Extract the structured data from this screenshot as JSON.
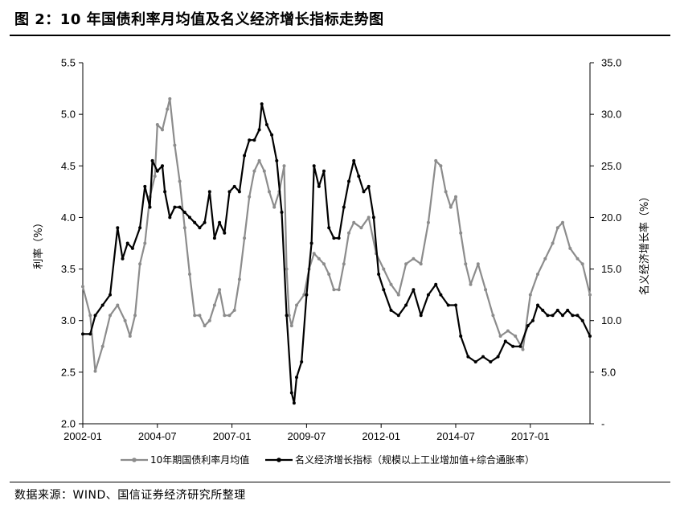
{
  "figure": {
    "title": "图 2：10 年国债利率月均值及名义经济增长指标走势图",
    "source": "数据来源：WIND、国信证券经济研究所整理"
  },
  "colors": {
    "series1": "#8c8c8c",
    "series2": "#000000",
    "axis": "#000000"
  },
  "chart_data": {
    "type": "line",
    "title": "图 2：10 年国债利率月均值及名义经济增长指标走势图",
    "xlabel": "",
    "ylabel": "利率（%）",
    "y2label": "名义经济增长率（%）",
    "x_ticks": [
      "2002-01",
      "2004-07",
      "2007-01",
      "2009-07",
      "2012-01",
      "2014-07",
      "2017-01"
    ],
    "xlim": [
      "2002-01",
      "2019-01"
    ],
    "ylim": [
      2.0,
      5.5
    ],
    "y_ticks": [
      "2.0",
      "2.5",
      "3.0",
      "3.5",
      "4.0",
      "4.5",
      "5.0",
      "5.5"
    ],
    "y2lim": [
      0,
      35
    ],
    "y2_ticks": [
      "-",
      "5.0",
      "10.0",
      "15.0",
      "20.0",
      "25.0",
      "30.0",
      "35.0"
    ],
    "legend_position": "bottom",
    "grid": false,
    "series": [
      {
        "name": "10年期国债利率月均值",
        "axis": "left",
        "color": "#8c8c8c",
        "marker": "circle",
        "points": [
          [
            "2002-01",
            3.33
          ],
          [
            "2002-04",
            3.05
          ],
          [
            "2002-06",
            2.51
          ],
          [
            "2002-09",
            2.75
          ],
          [
            "2002-12",
            3.05
          ],
          [
            "2003-03",
            3.15
          ],
          [
            "2003-06",
            3.0
          ],
          [
            "2003-08",
            2.85
          ],
          [
            "2003-10",
            3.05
          ],
          [
            "2003-12",
            3.55
          ],
          [
            "2004-02",
            3.75
          ],
          [
            "2004-04",
            4.2
          ],
          [
            "2004-06",
            4.4
          ],
          [
            "2004-07",
            4.9
          ],
          [
            "2004-09",
            4.85
          ],
          [
            "2004-11",
            5.05
          ],
          [
            "2004-12",
            5.15
          ],
          [
            "2005-02",
            4.7
          ],
          [
            "2005-04",
            4.35
          ],
          [
            "2005-06",
            3.9
          ],
          [
            "2005-08",
            3.45
          ],
          [
            "2005-10",
            3.05
          ],
          [
            "2005-12",
            3.05
          ],
          [
            "2006-02",
            2.95
          ],
          [
            "2006-04",
            3.0
          ],
          [
            "2006-06",
            3.15
          ],
          [
            "2006-08",
            3.3
          ],
          [
            "2006-10",
            3.05
          ],
          [
            "2006-12",
            3.05
          ],
          [
            "2007-02",
            3.1
          ],
          [
            "2007-04",
            3.4
          ],
          [
            "2007-06",
            3.8
          ],
          [
            "2007-08",
            4.2
          ],
          [
            "2007-10",
            4.45
          ],
          [
            "2007-12",
            4.55
          ],
          [
            "2008-02",
            4.45
          ],
          [
            "2008-04",
            4.25
          ],
          [
            "2008-06",
            4.1
          ],
          [
            "2008-08",
            4.25
          ],
          [
            "2008-10",
            4.5
          ],
          [
            "2008-11",
            3.5
          ],
          [
            "2008-12",
            3.05
          ],
          [
            "2009-01",
            2.95
          ],
          [
            "2009-03",
            3.15
          ],
          [
            "2009-06",
            3.25
          ],
          [
            "2009-08",
            3.5
          ],
          [
            "2009-10",
            3.65
          ],
          [
            "2009-12",
            3.6
          ],
          [
            "2010-02",
            3.55
          ],
          [
            "2010-04",
            3.45
          ],
          [
            "2010-06",
            3.3
          ],
          [
            "2010-08",
            3.3
          ],
          [
            "2010-10",
            3.55
          ],
          [
            "2010-12",
            3.85
          ],
          [
            "2011-02",
            3.95
          ],
          [
            "2011-05",
            3.9
          ],
          [
            "2011-08",
            4.0
          ],
          [
            "2011-11",
            3.65
          ],
          [
            "2012-02",
            3.5
          ],
          [
            "2012-05",
            3.35
          ],
          [
            "2012-08",
            3.25
          ],
          [
            "2012-11",
            3.55
          ],
          [
            "2013-02",
            3.6
          ],
          [
            "2013-05",
            3.55
          ],
          [
            "2013-08",
            3.95
          ],
          [
            "2013-11",
            4.55
          ],
          [
            "2014-01",
            4.5
          ],
          [
            "2014-03",
            4.25
          ],
          [
            "2014-05",
            4.1
          ],
          [
            "2014-07",
            4.2
          ],
          [
            "2014-09",
            3.85
          ],
          [
            "2014-11",
            3.55
          ],
          [
            "2015-01",
            3.35
          ],
          [
            "2015-04",
            3.55
          ],
          [
            "2015-07",
            3.3
          ],
          [
            "2015-10",
            3.05
          ],
          [
            "2016-01",
            2.85
          ],
          [
            "2016-04",
            2.9
          ],
          [
            "2016-07",
            2.85
          ],
          [
            "2016-10",
            2.72
          ],
          [
            "2017-01",
            3.25
          ],
          [
            "2017-04",
            3.45
          ],
          [
            "2017-07",
            3.6
          ],
          [
            "2017-10",
            3.75
          ],
          [
            "2017-12",
            3.9
          ],
          [
            "2018-02",
            3.95
          ],
          [
            "2018-05",
            3.7
          ],
          [
            "2018-08",
            3.6
          ],
          [
            "2018-10",
            3.55
          ],
          [
            "2019-01",
            3.25
          ]
        ]
      },
      {
        "name": "名义经济增长指标（规模以上工业增加值+综合通胀率）",
        "axis": "right",
        "color": "#000000",
        "marker": "circle",
        "points": [
          [
            "2002-01",
            8.7
          ],
          [
            "2002-04",
            8.7
          ],
          [
            "2002-06",
            10.5
          ],
          [
            "2002-09",
            11.5
          ],
          [
            "2002-12",
            12.5
          ],
          [
            "2003-03",
            19.0
          ],
          [
            "2003-05",
            16.0
          ],
          [
            "2003-07",
            17.5
          ],
          [
            "2003-09",
            17.0
          ],
          [
            "2003-12",
            19.0
          ],
          [
            "2004-02",
            23.0
          ],
          [
            "2004-04",
            21.0
          ],
          [
            "2004-05",
            25.5
          ],
          [
            "2004-07",
            24.5
          ],
          [
            "2004-09",
            25.0
          ],
          [
            "2004-10",
            22.5
          ],
          [
            "2004-12",
            20.0
          ],
          [
            "2005-02",
            21.0
          ],
          [
            "2005-04",
            21.0
          ],
          [
            "2005-06",
            20.5
          ],
          [
            "2005-08",
            20.0
          ],
          [
            "2005-10",
            19.5
          ],
          [
            "2005-12",
            19.0
          ],
          [
            "2006-02",
            19.5
          ],
          [
            "2006-04",
            22.5
          ],
          [
            "2006-06",
            18.0
          ],
          [
            "2006-08",
            19.5
          ],
          [
            "2006-10",
            18.5
          ],
          [
            "2006-12",
            22.5
          ],
          [
            "2007-02",
            23.0
          ],
          [
            "2007-04",
            22.5
          ],
          [
            "2007-06",
            26.0
          ],
          [
            "2007-08",
            27.5
          ],
          [
            "2007-10",
            27.5
          ],
          [
            "2007-12",
            28.5
          ],
          [
            "2008-01",
            31.0
          ],
          [
            "2008-03",
            29.0
          ],
          [
            "2008-05",
            28.0
          ],
          [
            "2008-07",
            25.5
          ],
          [
            "2008-09",
            20.5
          ],
          [
            "2008-11",
            10.5
          ],
          [
            "2009-01",
            3.0
          ],
          [
            "2009-02",
            2.0
          ],
          [
            "2009-03",
            4.5
          ],
          [
            "2009-05",
            6.0
          ],
          [
            "2009-07",
            12.5
          ],
          [
            "2009-09",
            17.5
          ],
          [
            "2009-10",
            25.0
          ],
          [
            "2009-12",
            23.0
          ],
          [
            "2010-02",
            24.5
          ],
          [
            "2010-04",
            19.0
          ],
          [
            "2010-06",
            18.0
          ],
          [
            "2010-08",
            18.0
          ],
          [
            "2010-10",
            21.0
          ],
          [
            "2010-12",
            23.5
          ],
          [
            "2011-02",
            25.5
          ],
          [
            "2011-04",
            24.0
          ],
          [
            "2011-06",
            22.5
          ],
          [
            "2011-08",
            23.0
          ],
          [
            "2011-10",
            20.0
          ],
          [
            "2011-12",
            14.5
          ],
          [
            "2012-02",
            13.0
          ],
          [
            "2012-05",
            11.0
          ],
          [
            "2012-08",
            10.5
          ],
          [
            "2012-11",
            11.5
          ],
          [
            "2013-02",
            13.0
          ],
          [
            "2013-05",
            10.5
          ],
          [
            "2013-08",
            12.5
          ],
          [
            "2013-11",
            13.5
          ],
          [
            "2014-01",
            12.5
          ],
          [
            "2014-04",
            11.5
          ],
          [
            "2014-07",
            11.5
          ],
          [
            "2014-09",
            8.5
          ],
          [
            "2014-12",
            6.5
          ],
          [
            "2015-03",
            6.0
          ],
          [
            "2015-06",
            6.5
          ],
          [
            "2015-09",
            6.0
          ],
          [
            "2015-12",
            6.5
          ],
          [
            "2016-03",
            8.0
          ],
          [
            "2016-06",
            7.5
          ],
          [
            "2016-09",
            7.5
          ],
          [
            "2016-12",
            9.5
          ],
          [
            "2017-02",
            10.0
          ],
          [
            "2017-04",
            11.5
          ],
          [
            "2017-06",
            11.0
          ],
          [
            "2017-08",
            10.5
          ],
          [
            "2017-10",
            10.5
          ],
          [
            "2017-12",
            11.0
          ],
          [
            "2018-02",
            10.5
          ],
          [
            "2018-04",
            11.0
          ],
          [
            "2018-06",
            10.5
          ],
          [
            "2018-08",
            10.5
          ],
          [
            "2018-10",
            10.0
          ],
          [
            "2019-01",
            8.5
          ]
        ]
      }
    ]
  }
}
